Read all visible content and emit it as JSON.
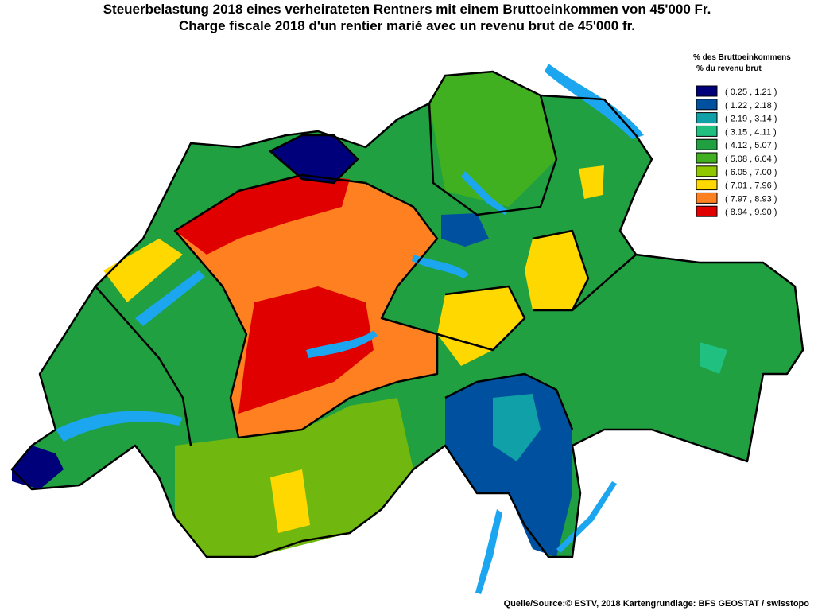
{
  "header": {
    "title_de": "Steuerbelastung 2018 eines verheirateten Rentners mit einem Bruttoeinkommen von 45'000 Fr.",
    "title_fr": "Charge fiscale 2018 d'un rentier marié avec un revenu brut de 45'000 fr."
  },
  "legend": {
    "title_de": "% des Bruttoeinkommens",
    "title_fr": "% du revenu brut",
    "items": [
      {
        "label": "( 0.25 , 1.21 )",
        "color": "#00007a"
      },
      {
        "label": "( 1.22 , 2.18 )",
        "color": "#0050a0"
      },
      {
        "label": "( 2.19 , 3.14 )",
        "color": "#10a0a8"
      },
      {
        "label": "( 3.15 , 4.11 )",
        "color": "#20c080"
      },
      {
        "label": "( 4.12 , 5.07 )",
        "color": "#20a040"
      },
      {
        "label": "( 5.08 , 6.04 )",
        "color": "#40b020"
      },
      {
        "label": "( 6.05 , 7.00 )",
        "color": "#90c800"
      },
      {
        "label": "( 7.01 , 7.96 )",
        "color": "#ffd800"
      },
      {
        "label": "( 7.97 , 8.93 )",
        "color": "#ff8020"
      },
      {
        "label": "( 8.94 , 9.90 )",
        "color": "#e00000"
      }
    ]
  },
  "source": "Quelle/Source:© ESTV, 2018 Kartengrundlage: BFS GEOSTAT / swisstopo"
}
